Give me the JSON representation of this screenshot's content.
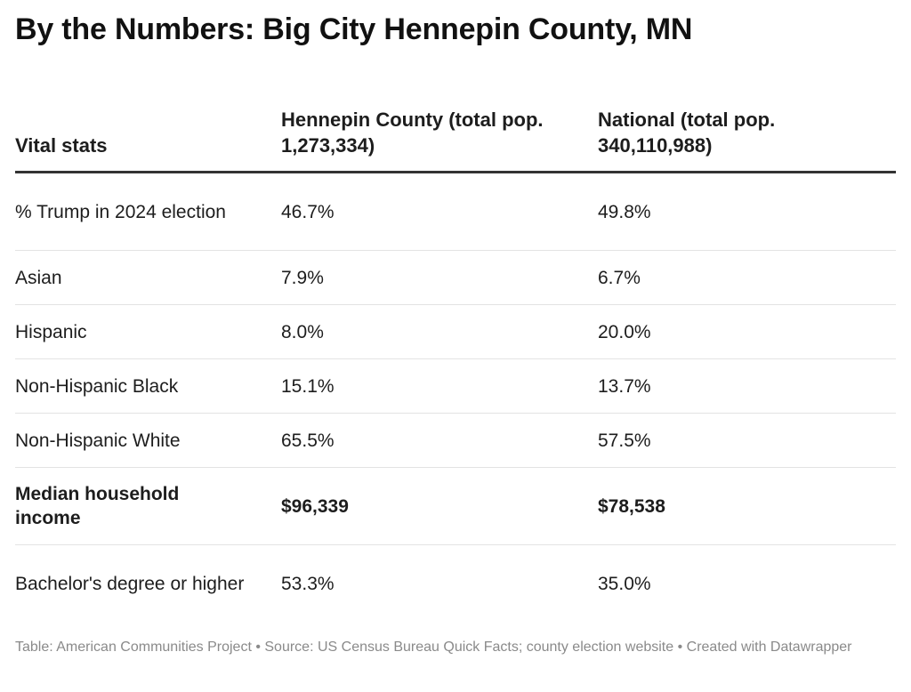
{
  "title": "By the Numbers: Big City Hennepin County, MN",
  "chart_data": {
    "type": "table",
    "columns": [
      "Vital stats",
      "Hennepin County (total pop. 1,273,334)",
      "National (total pop. 340,110,988)"
    ],
    "rows": [
      {
        "label": "% Trump in 2024 election",
        "county": "46.7%",
        "national": "49.8%",
        "bold": false
      },
      {
        "label": "Asian",
        "county": "7.9%",
        "national": "6.7%",
        "bold": false
      },
      {
        "label": "Hispanic",
        "county": "8.0%",
        "national": "20.0%",
        "bold": false
      },
      {
        "label": "Non-Hispanic Black",
        "county": "15.1%",
        "national": "13.7%",
        "bold": false
      },
      {
        "label": "Non-Hispanic White",
        "county": "65.5%",
        "national": "57.5%",
        "bold": false
      },
      {
        "label": "Median household income",
        "county": "$96,339",
        "national": "$78,538",
        "bold": true
      },
      {
        "label": "Bachelor's degree or higher",
        "county": "53.3%",
        "national": "35.0%",
        "bold": false
      }
    ]
  },
  "footer": "Table: American Communities Project • Source: US Census Bureau Quick Facts; county election website • Created with Datawrapper"
}
